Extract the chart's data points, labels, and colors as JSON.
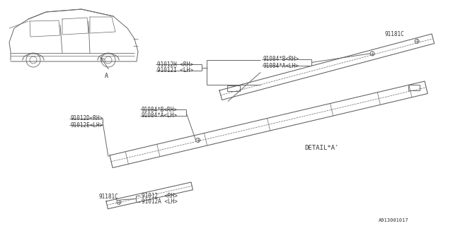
{
  "bg_color": "#ffffff",
  "line_color": "#666666",
  "text_color": "#333333",
  "part_number": "A913001017",
  "car_label": "A",
  "detail_label": "DETAIL*A'",
  "labels_top_left_protector": [
    "91012H <RH>",
    "91012I <LH>"
  ],
  "labels_top_right_protector": [
    "91084*B<RH>",
    "91084*A<LH>"
  ],
  "label_top_91181C": "91181C",
  "labels_mid_left": [
    "91012D<RH>",
    "91012E<LH>"
  ],
  "labels_mid_right": [
    "91084*B<RH>",
    "91084*A<LH>"
  ],
  "label_bot_91181C": "91181C",
  "labels_bot": [
    "91012  <RH>",
    "91012A <LH>"
  ]
}
